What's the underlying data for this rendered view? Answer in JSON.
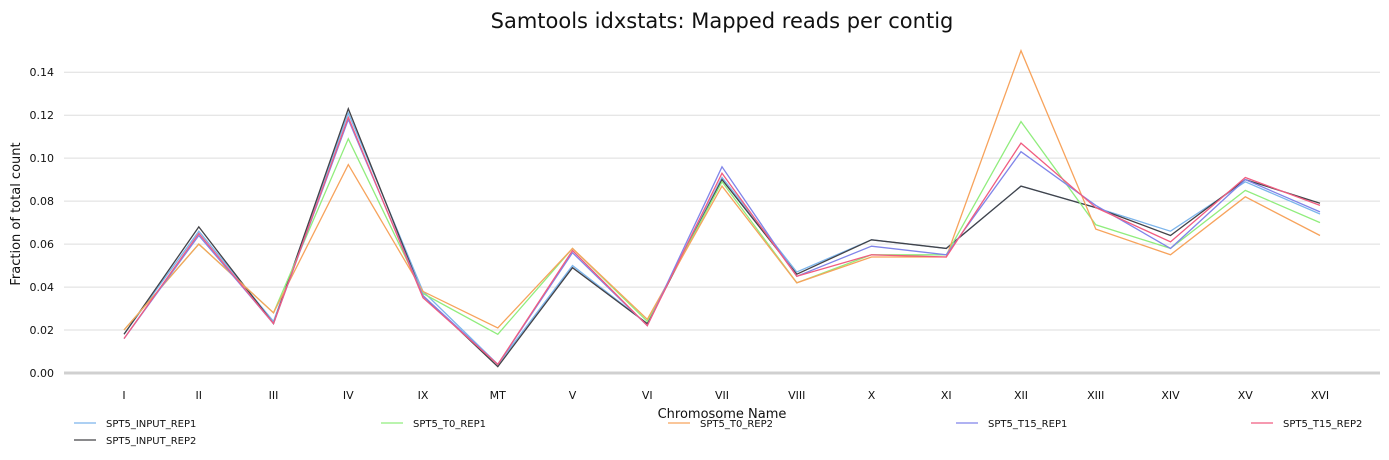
{
  "chart_data": {
    "type": "line",
    "title": "Samtools idxstats: Mapped reads per contig",
    "xlabel": "Chromosome Name",
    "ylabel": "Fraction of total count",
    "categories": [
      "I",
      "II",
      "III",
      "IV",
      "IX",
      "MT",
      "V",
      "VI",
      "VII",
      "VIII",
      "X",
      "XI",
      "XII",
      "XIII",
      "XIV",
      "XV",
      "XVI"
    ],
    "ylim": [
      0,
      0.155
    ],
    "yticks": [
      0.0,
      0.02,
      0.04,
      0.06,
      0.08,
      0.1,
      0.12,
      0.14
    ],
    "ytick_labels": [
      "0.00",
      "0.02",
      "0.04",
      "0.06",
      "0.08",
      "0.10",
      "0.12",
      "0.14"
    ],
    "grid": true,
    "legend_position": "bottom",
    "series": [
      {
        "name": "SPT5_INPUT_REP1",
        "color": "#7cb5ec",
        "values": [
          0.018,
          0.066,
          0.024,
          0.121,
          0.038,
          0.004,
          0.05,
          0.023,
          0.091,
          0.047,
          0.062,
          0.058,
          0.087,
          0.077,
          0.066,
          0.089,
          0.074
        ]
      },
      {
        "name": "SPT5_INPUT_REP2",
        "color": "#434348",
        "values": [
          0.018,
          0.068,
          0.023,
          0.123,
          0.036,
          0.003,
          0.049,
          0.023,
          0.09,
          0.046,
          0.062,
          0.058,
          0.087,
          0.077,
          0.064,
          0.09,
          0.079
        ]
      },
      {
        "name": "SPT5_T0_REP1",
        "color": "#90ed7d",
        "values": [
          0.02,
          0.06,
          0.028,
          0.109,
          0.037,
          0.018,
          0.058,
          0.024,
          0.089,
          0.042,
          0.055,
          0.055,
          0.117,
          0.069,
          0.058,
          0.085,
          0.07
        ]
      },
      {
        "name": "SPT5_T0_REP2",
        "color": "#f7a35c",
        "values": [
          0.02,
          0.06,
          0.028,
          0.097,
          0.038,
          0.021,
          0.058,
          0.025,
          0.087,
          0.042,
          0.054,
          0.054,
          0.15,
          0.067,
          0.055,
          0.082,
          0.064
        ]
      },
      {
        "name": "SPT5_T15_REP1",
        "color": "#8085e9",
        "values": [
          0.016,
          0.064,
          0.023,
          0.118,
          0.036,
          0.004,
          0.056,
          0.022,
          0.096,
          0.045,
          0.059,
          0.055,
          0.103,
          0.078,
          0.058,
          0.09,
          0.075
        ]
      },
      {
        "name": "SPT5_T15_REP2",
        "color": "#f15c80",
        "values": [
          0.016,
          0.065,
          0.023,
          0.119,
          0.035,
          0.004,
          0.057,
          0.022,
          0.093,
          0.045,
          0.055,
          0.054,
          0.107,
          0.077,
          0.061,
          0.091,
          0.078
        ]
      }
    ]
  }
}
